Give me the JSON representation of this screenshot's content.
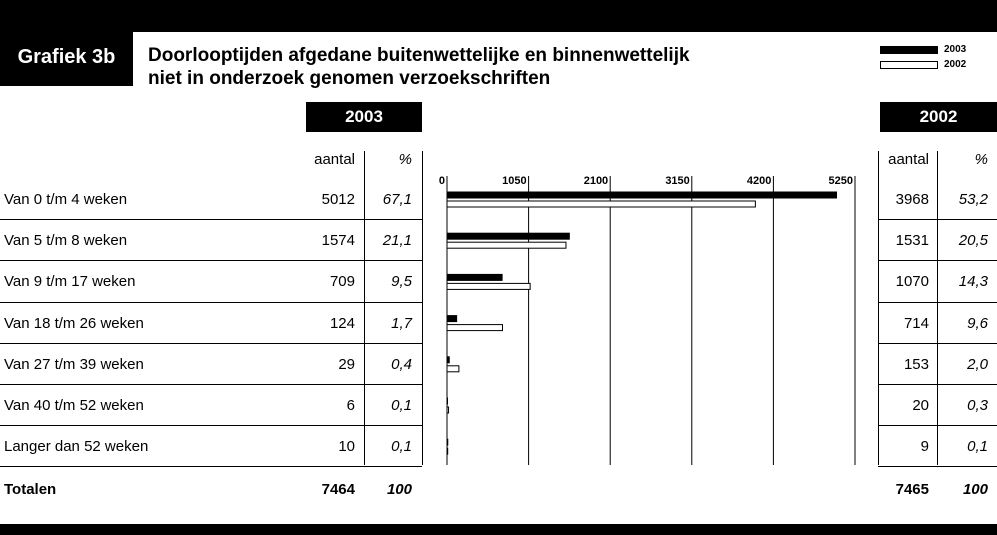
{
  "header": {
    "label": "Grafiek 3b",
    "title_line1": "Doorlooptijden afgedane buitenwettelijke en binnenwettelijk",
    "title_line2": "niet in onderzoek genomen verzoekschriften"
  },
  "legend": {
    "item_2003": "2003",
    "item_2002": "2002"
  },
  "table_2003": {
    "year": "2003",
    "col_count": "aantal",
    "col_pct": "%"
  },
  "table_2002": {
    "year": "2002",
    "col_count": "aantal",
    "col_pct": "%"
  },
  "rows": [
    {
      "label": "Van 0 t/m 4 weken",
      "n2003": "5012",
      "p2003": "67,1",
      "n2002": "3968",
      "p2002": "53,2"
    },
    {
      "label": "Van 5 t/m 8 weken",
      "n2003": "1574",
      "p2003": "21,1",
      "n2002": "1531",
      "p2002": "20,5"
    },
    {
      "label": "Van 9 t/m 17 weken",
      "n2003": "709",
      "p2003": "9,5",
      "n2002": "1070",
      "p2002": "14,3"
    },
    {
      "label": "Van 18 t/m 26 weken",
      "n2003": "124",
      "p2003": "1,7",
      "n2002": "714",
      "p2002": "9,6"
    },
    {
      "label": "Van 27 t/m 39 weken",
      "n2003": "29",
      "p2003": "0,4",
      "n2002": "153",
      "p2002": "2,0"
    },
    {
      "label": "Van 40 t/m 52 weken",
      "n2003": "6",
      "p2003": "0,1",
      "n2002": "20",
      "p2002": "0,3"
    },
    {
      "label": "Langer dan 52 weken",
      "n2003": "10",
      "p2003": "0,1",
      "n2002": "9",
      "p2002": "0,1"
    }
  ],
  "totals": {
    "label": "Totalen",
    "n2003": "7464",
    "p2003": "100",
    "n2002": "7465",
    "p2002": "100"
  },
  "chart_data": {
    "type": "bar",
    "orientation": "horizontal",
    "categories": [
      "Van 0 t/m 4 weken",
      "Van 5 t/m 8 weken",
      "Van 9 t/m 17 weken",
      "Van 18 t/m 26 weken",
      "Van 27 t/m 39 weken",
      "Van 40 t/m 52 weken",
      "Langer dan 52 weken"
    ],
    "series": [
      {
        "name": "2003",
        "color": "#000000",
        "values": [
          5012,
          1574,
          709,
          124,
          29,
          6,
          10
        ]
      },
      {
        "name": "2002",
        "color": "#ffffff",
        "values": [
          3968,
          1531,
          1070,
          714,
          153,
          20,
          9
        ]
      }
    ],
    "xticks": [
      "0",
      "1050",
      "2100",
      "3150",
      "4200",
      "5250"
    ],
    "tick_values": [
      0,
      1050,
      2100,
      3150,
      4200,
      5250
    ],
    "xlim": [
      0,
      5250
    ],
    "grid": true,
    "legend_position": "top-right"
  }
}
